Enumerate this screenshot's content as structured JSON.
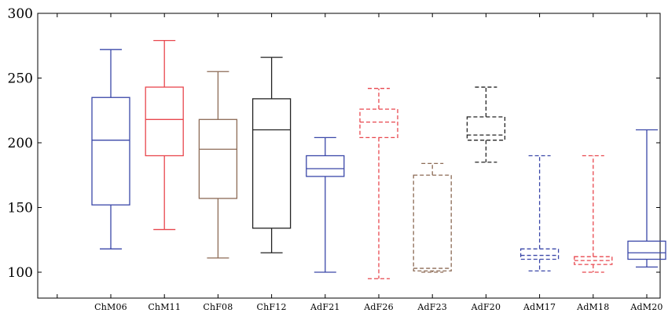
{
  "chart_data": {
    "type": "boxplot",
    "title": "",
    "xlabel": "",
    "ylabel": "",
    "ylim": [
      80,
      300
    ],
    "yticks": [
      100,
      150,
      200,
      250,
      300
    ],
    "grid": false,
    "legend": "none",
    "categories": [
      "ChM06",
      "ChM11",
      "ChF08",
      "ChF12",
      "AdF21",
      "AdF26",
      "AdF23",
      "AdF20",
      "AdM17",
      "AdM18",
      "AdM20"
    ],
    "series": [
      {
        "category": "ChM06",
        "whisker_low": 118,
        "q1": 152,
        "median": 202,
        "q3": 235,
        "whisker_high": 272,
        "color": "#3a47a8",
        "dashed": false
      },
      {
        "category": "ChM11",
        "whisker_low": 133,
        "q1": 190,
        "median": 218,
        "q3": 243,
        "whisker_high": 279,
        "color": "#e8474e",
        "dashed": false
      },
      {
        "category": "ChF08",
        "whisker_low": 111,
        "q1": 157,
        "median": 195,
        "q3": 218,
        "whisker_high": 255,
        "color": "#8c6a55",
        "dashed": false
      },
      {
        "category": "ChF12",
        "whisker_low": 115,
        "q1": 134,
        "median": 210,
        "q3": 234,
        "whisker_high": 266,
        "color": "#222222",
        "dashed": false
      },
      {
        "category": "AdF21",
        "whisker_low": 100,
        "q1": 174,
        "median": 180,
        "q3": 190,
        "whisker_high": 204,
        "color": "#3a47a8",
        "dashed": false
      },
      {
        "category": "AdF26",
        "whisker_low": 95,
        "q1": 204,
        "median": 216,
        "q3": 226,
        "whisker_high": 242,
        "color": "#e8474e",
        "dashed": true
      },
      {
        "category": "AdF23",
        "whisker_low": 100,
        "q1": 101,
        "median": 103,
        "q3": 175,
        "whisker_high": 184,
        "color": "#8c6a55",
        "dashed": true
      },
      {
        "category": "AdF20",
        "whisker_low": 185,
        "q1": 202,
        "median": 206,
        "q3": 220,
        "whisker_high": 243,
        "color": "#222222",
        "dashed": true
      },
      {
        "category": "AdM17",
        "whisker_low": 101,
        "q1": 110,
        "median": 113,
        "q3": 118,
        "whisker_high": 190,
        "color": "#3a47a8",
        "dashed": true
      },
      {
        "category": "AdM18",
        "whisker_low": 100,
        "q1": 106,
        "median": 109,
        "q3": 112,
        "whisker_high": 190,
        "color": "#e8474e",
        "dashed": true
      },
      {
        "category": "AdM20",
        "whisker_low": 104,
        "q1": 110,
        "median": 115,
        "q3": 124,
        "whisker_high": 210,
        "color": "#3a47a8",
        "dashed": false
      }
    ]
  }
}
